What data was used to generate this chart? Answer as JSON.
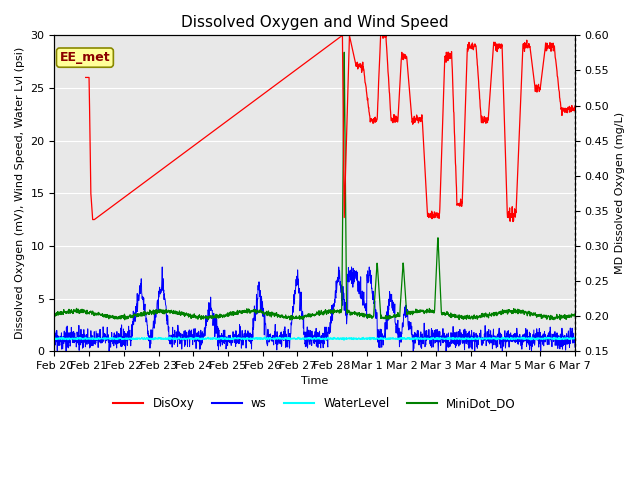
{
  "title": "Dissolved Oxygen and Wind Speed",
  "ylabel_left": "Dissolved Oxygen (mV), Wind Speed, Water Lvl (psi)",
  "ylabel_right": "MD Dissolved Oxygen (mg/L)",
  "xlabel": "Time",
  "ylim_left": [
    0,
    30
  ],
  "ylim_right": [
    0.15,
    0.6
  ],
  "annotation_text": "EE_met",
  "background_color": "#e8e8e8",
  "title_fontsize": 11,
  "axis_label_fontsize": 8,
  "tick_fontsize": 8,
  "yticks_left": [
    0,
    5,
    10,
    15,
    20,
    25,
    30
  ],
  "yticks_right": [
    0.15,
    0.2,
    0.25,
    0.3,
    0.35,
    0.4,
    0.45,
    0.5,
    0.55,
    0.6
  ],
  "tick_labels": [
    "Feb 20",
    "Feb 21",
    "Feb 22",
    "Feb 23",
    "Feb 24",
    "Feb 25",
    "Feb 26",
    "Feb 27",
    "Feb 28",
    "Mar 1",
    "Mar 2",
    "Mar 3",
    "Mar 4",
    "Mar 5",
    "Mar 6",
    "Mar 7"
  ]
}
